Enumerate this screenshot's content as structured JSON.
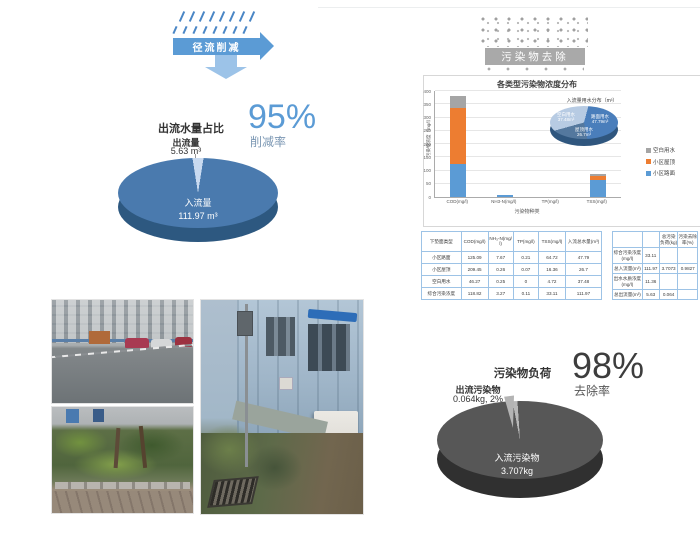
{
  "runoff": {
    "banner_label": "径流削减",
    "pie_title": "出流水量占比",
    "outflow_name": "出流量",
    "outflow_value": "5.63 m³",
    "inflow_name": "入流量",
    "inflow_value": "111.97 m³",
    "rate_value": "95%",
    "rate_label": "削减率"
  },
  "removal": {
    "banner_label": "污染物去除"
  },
  "load": {
    "title": "污染物负荷",
    "outflow_name": "出流污染物",
    "outflow_value": "0.064kg, 2%",
    "inflow_name": "入流污染物",
    "inflow_value": "3.707kg",
    "rate_value": "98%",
    "rate_label": "去除率"
  },
  "chart_data": [
    {
      "id": "outflow-share-pie",
      "type": "pie",
      "title": "出流水量占比",
      "note": "95% 削减率",
      "start_deg": 351,
      "slices": [
        {
          "label": "出流量",
          "value": 5.63,
          "unit": "m³",
          "pct": 5,
          "color": "#c9daf0"
        },
        {
          "label": "入流量",
          "value": 111.97,
          "unit": "m³",
          "pct": 95,
          "color": "#4a7aae"
        }
      ]
    },
    {
      "id": "pollutant-concentration-bar",
      "type": "bar",
      "title": "各类型污染物浓度分布",
      "xlabel": "污染物种类",
      "ylabel": "污染物浓度（mg/l）",
      "ylim": [
        0,
        400
      ],
      "ytick_step": 50,
      "grid": true,
      "legend_position": "right",
      "categories": [
        "COD(mg/l)",
        "NH3-N(mg/l)",
        "TP(mg/l)",
        "TSS(mg/l)"
      ],
      "series": [
        {
          "name": "小区路面",
          "color": "#5b9bd5",
          "values": [
            125.09,
            7.67,
            0.21,
            64.72
          ]
        },
        {
          "name": "小区屋顶",
          "color": "#ed7d31",
          "values": [
            209.45,
            0.26,
            0.07,
            16.36
          ]
        },
        {
          "name": "空白用水",
          "color": "#a5a5a5",
          "values": [
            46.27,
            0.25,
            0,
            4.72
          ]
        }
      ],
      "legend_order": [
        "空白用水",
        "小区屋顶",
        "小区路面"
      ]
    },
    {
      "id": "inflow-source-pie",
      "type": "pie",
      "title": "入流量用水分布（m³）",
      "start_deg": 15,
      "slices": [
        {
          "label": "路面用水",
          "value": 47.79,
          "unit": "m³",
          "display": "47.79m³",
          "color": "#4a7ebb"
        },
        {
          "label": "屋顶用水",
          "value": 26.7,
          "unit": "m³",
          "display": "26.7m³",
          "color": "#54789e"
        },
        {
          "label": "空白用水",
          "value": 37.48,
          "unit": "m³",
          "display": "37.48m³",
          "color": "#b7cbe3"
        }
      ]
    },
    {
      "id": "pollutant-load-pie",
      "type": "pie",
      "title": "污染物负荷",
      "note": "98% 去除率",
      "start_deg": 349,
      "slices": [
        {
          "label": "出流污染物",
          "value": 0.064,
          "unit": "kg",
          "pct": 2,
          "color": "#b8b8b8"
        },
        {
          "label": "入流污染物",
          "value": 3.707,
          "unit": "kg",
          "pct": 98,
          "color": "#575757"
        }
      ]
    }
  ],
  "tables": {
    "surface": {
      "headers": [
        "下垫面类型",
        "COD(mg/l)",
        "NH₃-N(mg/l)",
        "TP(mg/l)",
        "TSS(mg/l)",
        "入流总水量(m³)"
      ],
      "rows": [
        [
          "小区路面",
          "125.09",
          "7.67",
          "0.21",
          "64.72",
          "47.79"
        ],
        [
          "小区屋顶",
          "209.45",
          "0.26",
          "0.07",
          "16.36",
          "26.7"
        ],
        [
          "空白用水",
          "46.27",
          "0.25",
          "0",
          "4.72",
          "37.48"
        ],
        [
          "综合污染浓度",
          "118.82",
          "3.27",
          "0.11",
          "33.11",
          "111.97"
        ]
      ]
    },
    "summary": {
      "headers": [
        "",
        "",
        "总污染负荷(kg)",
        "污染去除率(%)"
      ],
      "rows": [
        [
          "综合污染浓度(mg/l)",
          "33.11",
          "",
          ""
        ],
        [
          "总入流量(m³)",
          "111.97",
          "3.7073",
          "0.9827"
        ],
        [
          "出水水质浓度(mg/l)",
          "11.36",
          "",
          ""
        ],
        [
          "总出流量(m³)",
          "5.63",
          "0.064",
          ""
        ]
      ]
    }
  }
}
